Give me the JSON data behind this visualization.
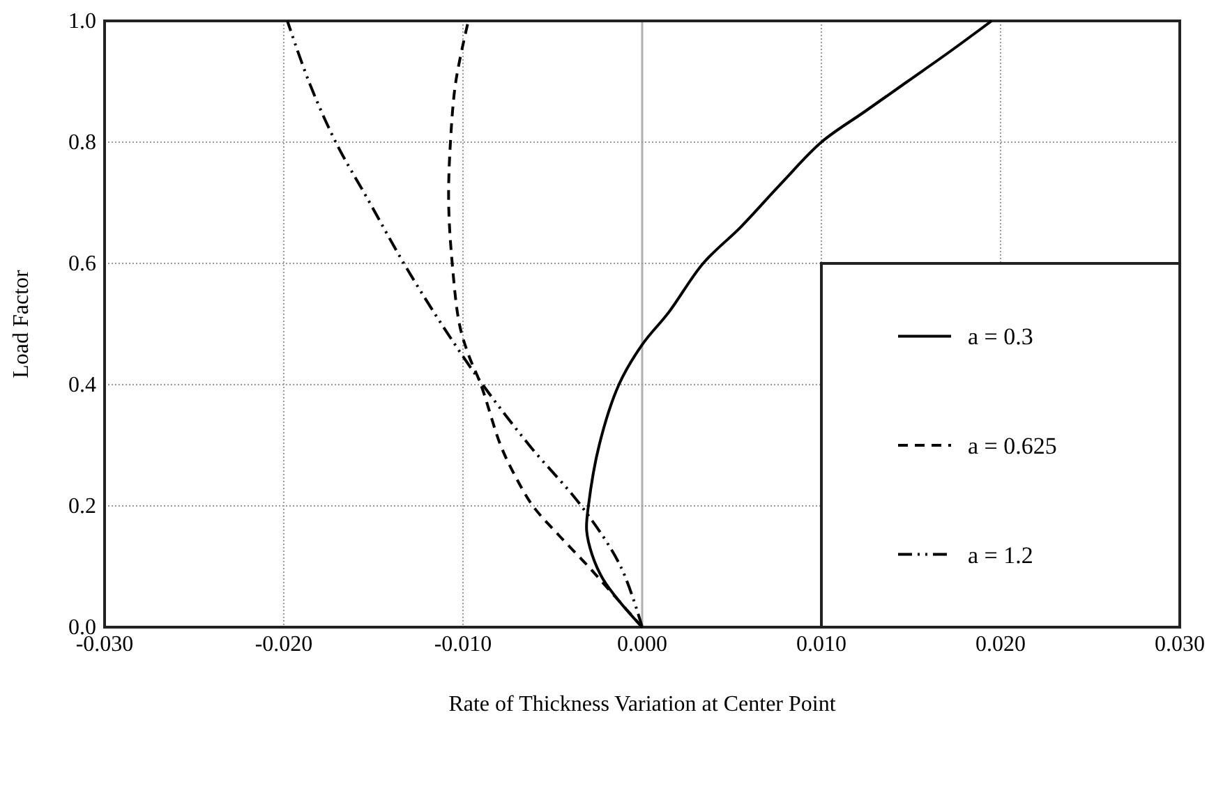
{
  "chart_data": {
    "type": "line",
    "xlabel": "Rate of Thickness Variation at Center Point",
    "ylabel": "Load Factor",
    "xlim": [
      -0.03,
      0.03
    ],
    "ylim": [
      0,
      1
    ],
    "xticks": [
      {
        "value": -0.03,
        "label": "-0.030"
      },
      {
        "value": -0.02,
        "label": "-0.020"
      },
      {
        "value": -0.01,
        "label": "-0.010"
      },
      {
        "value": 0,
        "label": "0.000"
      },
      {
        "value": 0.01,
        "label": "0.010"
      },
      {
        "value": 0.02,
        "label": "0.020"
      },
      {
        "value": 0.03,
        "label": "0.030"
      }
    ],
    "yticks": [
      {
        "value": 0,
        "label": "0.0"
      },
      {
        "value": 0.2,
        "label": "0.2"
      },
      {
        "value": 0.4,
        "label": "0.4"
      },
      {
        "value": 0.6,
        "label": "0.6"
      },
      {
        "value": 0.8,
        "label": "0.8"
      },
      {
        "value": 1,
        "label": "1.0"
      }
    ],
    "grid": true,
    "legend": "bottom right",
    "series": [
      {
        "name": "a = 0.3",
        "color": "#000000",
        "line_style": "solid",
        "x": [
          0,
          -0.0012,
          -0.0022,
          -0.0028,
          -0.0031,
          -0.003,
          -0.0024,
          -0.0013,
          0,
          0.0015,
          0.0034,
          0.0055,
          0.0077,
          0.01,
          0.0124,
          0.0148,
          0.0172,
          0.0195
        ],
        "values": [
          0,
          0.04,
          0.08,
          0.12,
          0.16,
          0.2,
          0.3,
          0.4,
          0.466,
          0.52,
          0.6,
          0.66,
          0.73,
          0.8,
          0.85,
          0.9,
          0.95,
          1.0
        ]
      },
      {
        "name": "a = 0.625",
        "color": "#000000",
        "line_style": "dashed",
        "x": [
          0,
          -0.0015,
          -0.003,
          -0.0046,
          -0.0061,
          -0.0071,
          -0.0079,
          -0.009,
          -0.0097,
          -0.0102,
          -0.0106,
          -0.0108,
          -0.0107,
          -0.0104,
          -0.0097
        ],
        "values": [
          0,
          0.05,
          0.1,
          0.15,
          0.2,
          0.25,
          0.3,
          0.4,
          0.45,
          0.5,
          0.6,
          0.7,
          0.8,
          0.9,
          1.0
        ]
      },
      {
        "name": "a = 1.2",
        "color": "#000000",
        "line_style": "dashdot",
        "x": [
          0,
          -0.0012,
          -0.0034,
          -0.0063,
          -0.0089,
          -0.0112,
          -0.0133,
          -0.0152,
          -0.0171,
          -0.0186,
          -0.0198
        ],
        "values": [
          0,
          0.1,
          0.2,
          0.3,
          0.4,
          0.5,
          0.6,
          0.7,
          0.8,
          0.9,
          1.0
        ]
      }
    ]
  }
}
